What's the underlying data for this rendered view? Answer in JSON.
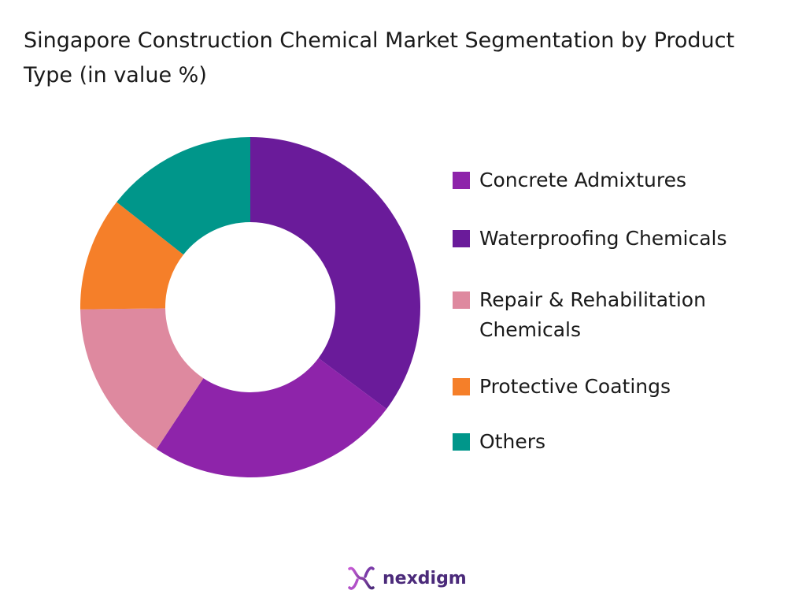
{
  "chart_data": {
    "type": "pie",
    "variant": "donut",
    "title": "Singapore Construction Chemical Market Segmentation by Product Type (in value %)",
    "categories": [
      "Concrete Admixtures",
      "Waterproofing Chemicals",
      "Repair & Rehabilitation Chemicals",
      "Protective Coatings",
      "Others"
    ],
    "slices": [
      {
        "label": "Waterproofing Chemicals",
        "value": 35.2,
        "color": "#6a1b9a"
      },
      {
        "label": "Concrete Admixtures",
        "value": 24.1,
        "color": "#8e24aa"
      },
      {
        "label": "Repair & Rehabilitation Chemicals",
        "value": 15.5,
        "color": "#de899f"
      },
      {
        "label": "Protective Coatings",
        "value": 10.8,
        "color": "#f57f29"
      },
      {
        "label": "Others",
        "value": 14.4,
        "color": "#00968a"
      }
    ],
    "legend": {
      "placement": "right",
      "items": [
        {
          "label": "Concrete Admixtures",
          "color": "#8e24aa"
        },
        {
          "label": "Waterproofing Chemicals",
          "color": "#6a1b9a"
        },
        {
          "label": "Repair & Rehabilitation Chemicals",
          "color": "#de899f"
        },
        {
          "label": "Protective Coatings",
          "color": "#f57f29"
        },
        {
          "label": "Others",
          "color": "#00968a"
        }
      ]
    }
  },
  "brand": {
    "name": "nexdigm",
    "color": "#4b2a7a",
    "icon": "nexdigm-logo-icon"
  }
}
